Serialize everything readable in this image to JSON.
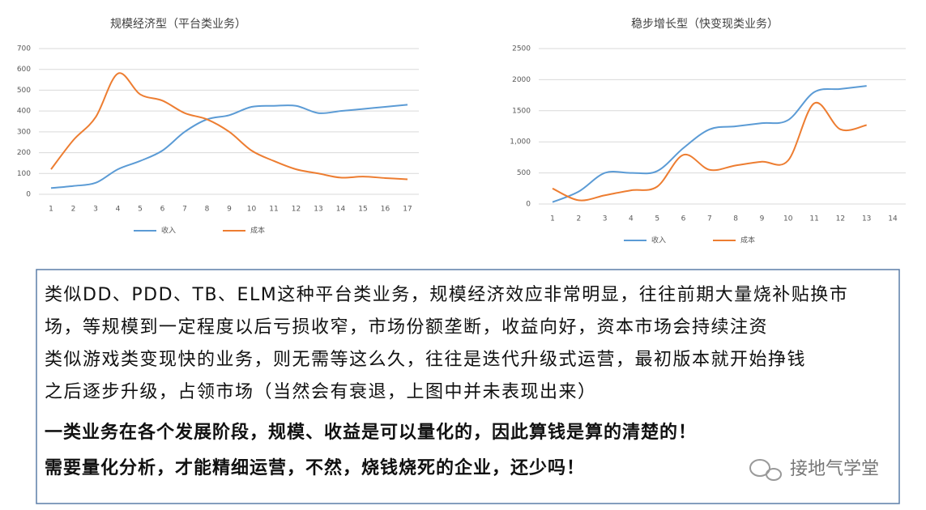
{
  "chart_data": [
    {
      "type": "line",
      "title": "规模经济型（平台类业务）",
      "categories": [
        "1",
        "2",
        "3",
        "4",
        "5",
        "6",
        "7",
        "8",
        "9",
        "10",
        "11",
        "12",
        "13",
        "14",
        "15",
        "16",
        "17"
      ],
      "series": [
        {
          "name": "收入",
          "color": "#5b9bd5",
          "values": [
            30,
            40,
            55,
            120,
            160,
            210,
            300,
            360,
            380,
            420,
            425,
            425,
            390,
            400,
            410,
            420,
            430
          ]
        },
        {
          "name": "成本",
          "color": "#ed7d31",
          "values": [
            120,
            260,
            370,
            580,
            480,
            450,
            390,
            360,
            300,
            210,
            160,
            120,
            100,
            80,
            85,
            78,
            72
          ]
        }
      ],
      "ylim": [
        0,
        700
      ],
      "yticks": [
        0,
        100,
        200,
        300,
        400,
        500,
        600,
        700
      ],
      "grid": true,
      "legend": "bottom"
    },
    {
      "type": "line",
      "title": "稳步增长型（快变现类业务）",
      "categories": [
        "1",
        "2",
        "3",
        "4",
        "5",
        "6",
        "7",
        "8",
        "9",
        "10",
        "11",
        "12",
        "13",
        "14"
      ],
      "series": [
        {
          "name": "收入",
          "color": "#5b9bd5",
          "values": [
            30,
            200,
            500,
            500,
            530,
            900,
            1200,
            1250,
            1300,
            1350,
            1800,
            1850,
            1900,
            null
          ]
        },
        {
          "name": "成本",
          "color": "#ed7d31",
          "values": [
            250,
            60,
            140,
            220,
            280,
            790,
            550,
            620,
            680,
            700,
            1620,
            1200,
            1270,
            null
          ]
        }
      ],
      "ylim": [
        0,
        2500
      ],
      "yticks": [
        0,
        500,
        {
          "value": 1000,
          "label": "1,000"
        },
        1500,
        2000,
        2500
      ],
      "grid": true,
      "legend": "bottom"
    }
  ],
  "text_box": {
    "lines": [
      "类似DD、PDD、TB、ELM这种平台类业务，规模经济效应非常明显，往往前期大量烧补贴换市",
      "场，等规模到一定程度以后亏损收窄，市场份额垄断，收益向好，资本市场会持续注资",
      "类似游戏类变现快的业务，则无需等这么久，往往是迭代升级式运营，最初版本就开始挣钱",
      "之后逐步升级，占领市场（当然会有衰退，上图中并未表现出来）"
    ],
    "bold_lines": [
      "一类业务在各个发展阶段，规模、收益是可以量化的，因此算钱是算的清楚的！",
      "需要量化分析，才能精细运营，不然，烧钱烧死的企业，还少吗！"
    ]
  },
  "watermark": "接地气学堂"
}
